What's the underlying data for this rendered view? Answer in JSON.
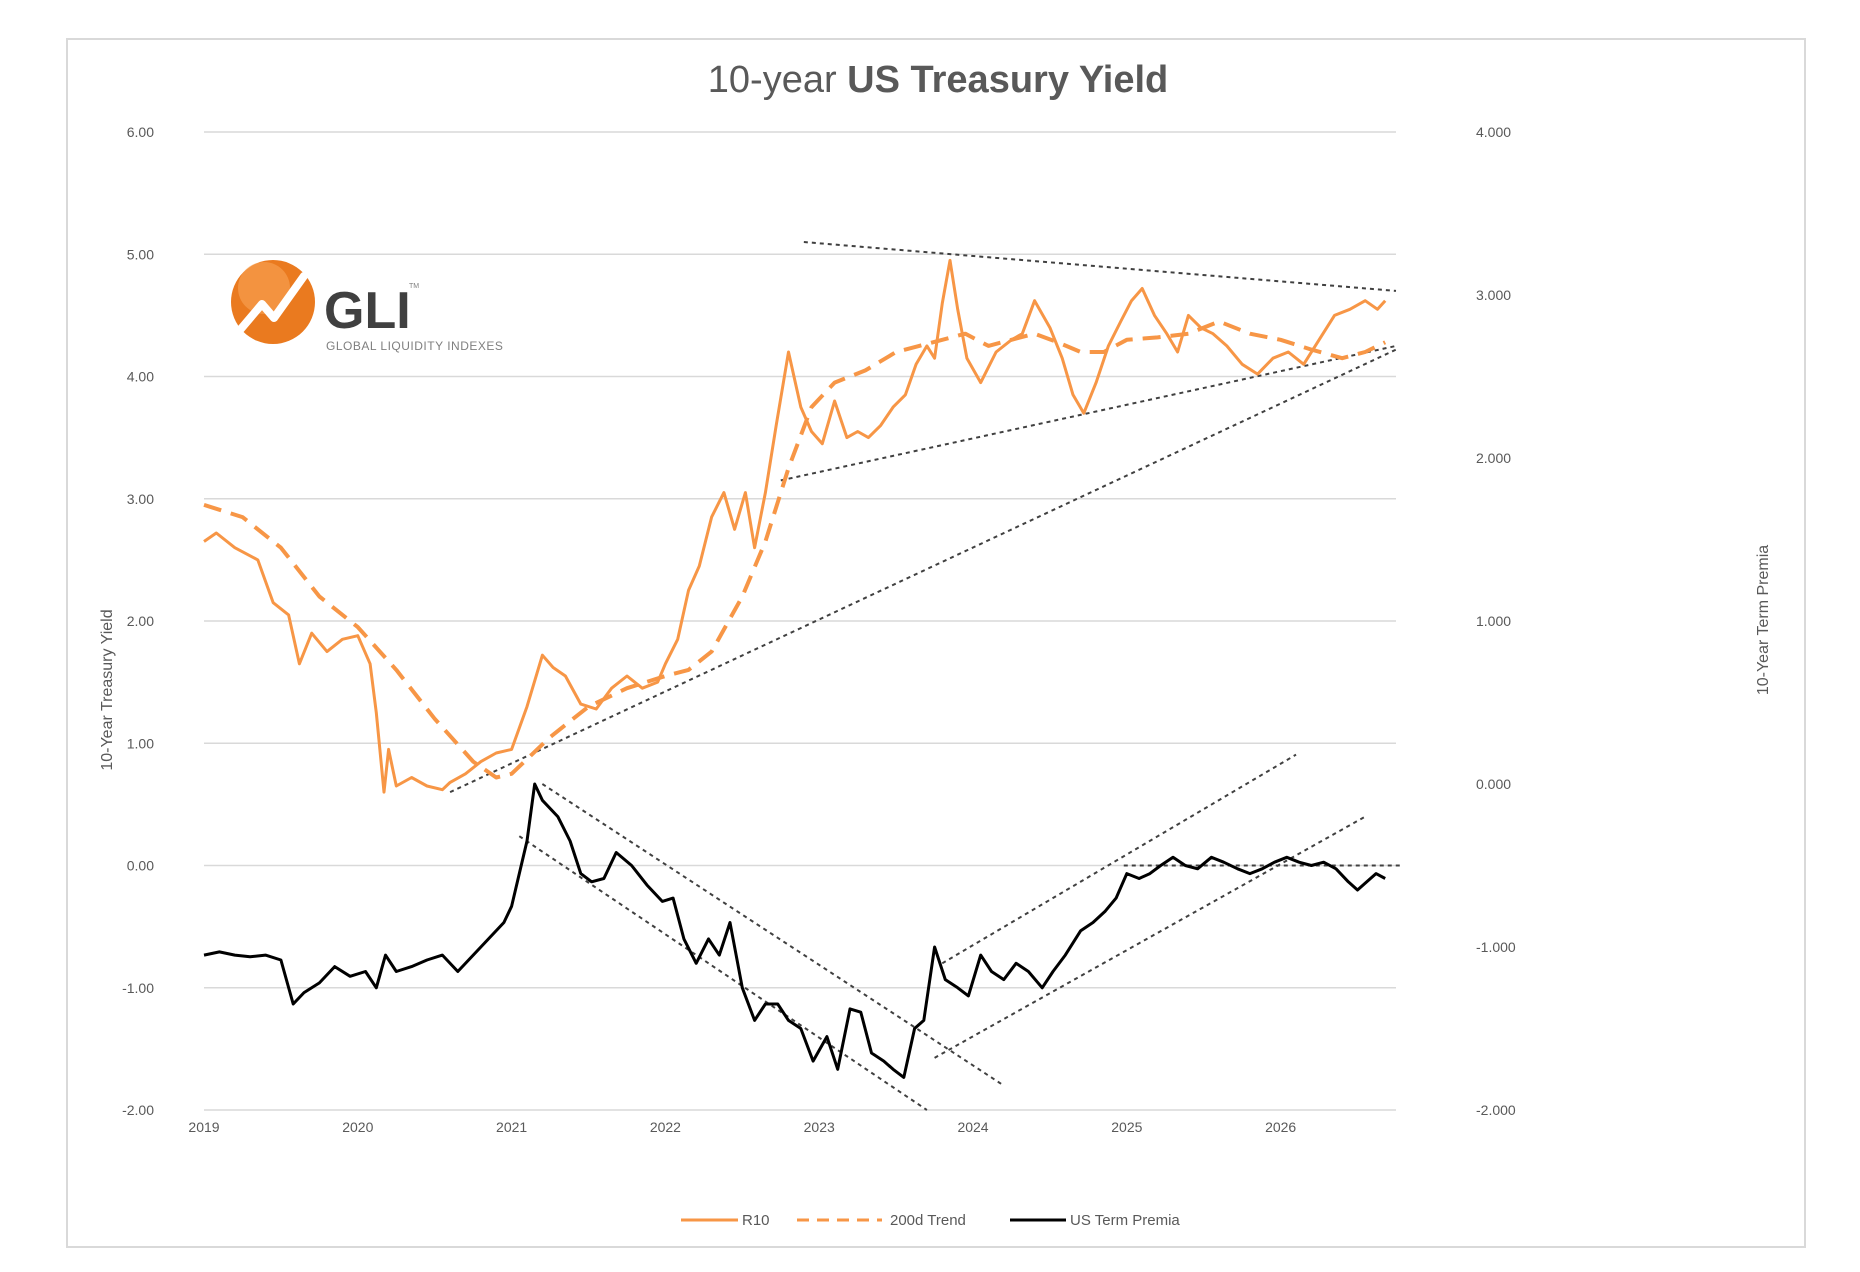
{
  "chart_data": {
    "type": "line",
    "title_part1": "10-year ",
    "title_part2": "US Treasury Yield",
    "ylabel_left": "10-Year Treasury Yield",
    "ylabel_right": "10-Year Term Premia",
    "xlim": [
      2019,
      2026.75
    ],
    "ylim_left": [
      -2,
      6
    ],
    "ylim_right": [
      -2,
      4
    ],
    "left_ticks": [
      "6.00",
      "5.00",
      "4.00",
      "3.00",
      "2.00",
      "1.00",
      "0.00",
      "-1.00",
      "-2.00"
    ],
    "right_ticks": [
      "4.000",
      "3.000",
      "2.000",
      "1.000",
      "0.000",
      "-1.000",
      "-2.000"
    ],
    "x_ticks": [
      "2019",
      "2020",
      "2021",
      "2022",
      "2023",
      "2024",
      "2025",
      "2026"
    ],
    "grid": "horizontal",
    "legend_position": "bottom",
    "colors": {
      "r10": "#f79646",
      "trend": "#f79646",
      "premia": "#000000",
      "trendline": "#404040",
      "grid": "#d9d9d9"
    },
    "logo": {
      "name": "GLI",
      "tagline": "GLOBAL LIQUIDITY INDEXES",
      "mark": "TM"
    },
    "series": [
      {
        "name": "R10",
        "axis": "left",
        "style": "solid",
        "x": [
          2019.0,
          2019.08,
          2019.2,
          2019.35,
          2019.45,
          2019.55,
          2019.62,
          2019.7,
          2019.8,
          2019.9,
          2020.0,
          2020.08,
          2020.12,
          2020.17,
          2020.2,
          2020.25,
          2020.35,
          2020.45,
          2020.55,
          2020.6,
          2020.7,
          2020.8,
          2020.9,
          2021.0,
          2021.1,
          2021.2,
          2021.27,
          2021.35,
          2021.45,
          2021.55,
          2021.65,
          2021.75,
          2021.85,
          2021.95,
          2022.0,
          2022.08,
          2022.15,
          2022.22,
          2022.3,
          2022.38,
          2022.45,
          2022.52,
          2022.58,
          2022.65,
          2022.72,
          2022.8,
          2022.88,
          2022.95,
          2023.02,
          2023.1,
          2023.18,
          2023.25,
          2023.32,
          2023.4,
          2023.48,
          2023.56,
          2023.63,
          2023.7,
          2023.75,
          2023.8,
          2023.85,
          2023.9,
          2023.96,
          2024.05,
          2024.15,
          2024.25,
          2024.32,
          2024.4,
          2024.5,
          2024.58,
          2024.65,
          2024.72,
          2024.8,
          2024.88,
          2024.96,
          2025.03,
          2025.1,
          2025.18,
          2025.26,
          2025.33,
          2025.4,
          2025.48,
          2025.56,
          2025.65,
          2025.75,
          2025.85,
          2025.95,
          2026.05,
          2026.15,
          2026.25,
          2026.35,
          2026.45,
          2026.55,
          2026.63,
          2026.68
        ],
        "values": [
          2.65,
          2.72,
          2.6,
          2.5,
          2.15,
          2.05,
          1.65,
          1.9,
          1.75,
          1.85,
          1.88,
          1.65,
          1.25,
          0.6,
          0.95,
          0.65,
          0.72,
          0.65,
          0.62,
          0.68,
          0.75,
          0.85,
          0.92,
          0.95,
          1.3,
          1.72,
          1.62,
          1.55,
          1.32,
          1.28,
          1.45,
          1.55,
          1.45,
          1.5,
          1.65,
          1.85,
          2.25,
          2.45,
          2.85,
          3.05,
          2.75,
          3.05,
          2.6,
          3.05,
          3.6,
          4.2,
          3.75,
          3.55,
          3.45,
          3.8,
          3.5,
          3.55,
          3.5,
          3.6,
          3.75,
          3.85,
          4.1,
          4.25,
          4.15,
          4.6,
          4.95,
          4.55,
          4.15,
          3.95,
          4.2,
          4.3,
          4.35,
          4.62,
          4.4,
          4.15,
          3.85,
          3.7,
          3.95,
          4.25,
          4.45,
          4.62,
          4.72,
          4.5,
          4.35,
          4.2,
          4.5,
          4.4,
          4.35,
          4.25,
          4.1,
          4.02,
          4.15,
          4.2,
          4.1,
          4.3,
          4.5,
          4.55,
          4.62,
          4.55,
          4.62
        ]
      },
      {
        "name": "200d Trend",
        "axis": "left",
        "style": "dashed",
        "x": [
          2019.0,
          2019.25,
          2019.5,
          2019.75,
          2020.0,
          2020.25,
          2020.5,
          2020.75,
          2020.9,
          2021.0,
          2021.25,
          2021.5,
          2021.75,
          2022.0,
          2022.15,
          2022.3,
          2022.5,
          2022.65,
          2022.8,
          2022.95,
          2023.1,
          2023.3,
          2023.5,
          2023.65,
          2023.8,
          2023.95,
          2024.1,
          2024.25,
          2024.4,
          2024.55,
          2024.7,
          2024.85,
          2025.0,
          2025.2,
          2025.4,
          2025.6,
          2025.8,
          2026.0,
          2026.2,
          2026.4,
          2026.55,
          2026.68
        ],
        "values": [
          2.95,
          2.85,
          2.6,
          2.2,
          1.95,
          1.6,
          1.2,
          0.85,
          0.72,
          0.75,
          1.05,
          1.3,
          1.45,
          1.55,
          1.6,
          1.75,
          2.2,
          2.65,
          3.25,
          3.75,
          3.95,
          4.05,
          4.2,
          4.25,
          4.3,
          4.35,
          4.25,
          4.3,
          4.35,
          4.28,
          4.2,
          4.2,
          4.3,
          4.32,
          4.35,
          4.45,
          4.35,
          4.3,
          4.22,
          4.15,
          4.2,
          4.28
        ]
      },
      {
        "name": "US Term Premia",
        "axis": "right",
        "style": "solid",
        "x": [
          2019.0,
          2019.1,
          2019.2,
          2019.3,
          2019.4,
          2019.5,
          2019.58,
          2019.65,
          2019.75,
          2019.85,
          2019.95,
          2020.05,
          2020.12,
          2020.18,
          2020.25,
          2020.35,
          2020.45,
          2020.55,
          2020.65,
          2020.75,
          2020.85,
          2020.95,
          2021.0,
          2021.05,
          2021.1,
          2021.15,
          2021.2,
          2021.3,
          2021.38,
          2021.45,
          2021.52,
          2021.6,
          2021.68,
          2021.78,
          2021.88,
          2021.98,
          2022.05,
          2022.12,
          2022.2,
          2022.28,
          2022.35,
          2022.42,
          2022.5,
          2022.58,
          2022.65,
          2022.73,
          2022.8,
          2022.88,
          2022.96,
          2023.05,
          2023.12,
          2023.2,
          2023.27,
          2023.34,
          2023.42,
          2023.48,
          2023.55,
          2023.62,
          2023.68,
          2023.75,
          2023.82,
          2023.9,
          2023.97,
          2024.05,
          2024.12,
          2024.2,
          2024.28,
          2024.36,
          2024.45,
          2024.52,
          2024.6,
          2024.7,
          2024.78,
          2024.86,
          2024.93,
          2025.0,
          2025.08,
          2025.15,
          2025.22,
          2025.3,
          2025.38,
          2025.46,
          2025.55,
          2025.63,
          2025.72,
          2025.8,
          2025.88,
          2025.96,
          2026.04,
          2026.12,
          2026.2,
          2026.28,
          2026.36,
          2026.44,
          2026.5,
          2026.56,
          2026.62,
          2026.68
        ],
        "values": [
          -1.05,
          -1.03,
          -1.05,
          -1.06,
          -1.05,
          -1.08,
          -1.35,
          -1.28,
          -1.22,
          -1.12,
          -1.18,
          -1.15,
          -1.25,
          -1.05,
          -1.15,
          -1.12,
          -1.08,
          -1.05,
          -1.15,
          -1.05,
          -0.95,
          -0.85,
          -0.75,
          -0.55,
          -0.35,
          0.0,
          -0.1,
          -0.2,
          -0.35,
          -0.55,
          -0.6,
          -0.58,
          -0.42,
          -0.5,
          -0.62,
          -0.72,
          -0.7,
          -0.95,
          -1.1,
          -0.95,
          -1.05,
          -0.85,
          -1.25,
          -1.45,
          -1.35,
          -1.35,
          -1.45,
          -1.5,
          -1.7,
          -1.55,
          -1.75,
          -1.38,
          -1.4,
          -1.65,
          -1.7,
          -1.75,
          -1.8,
          -1.5,
          -1.45,
          -1.0,
          -1.2,
          -1.25,
          -1.3,
          -1.05,
          -1.15,
          -1.2,
          -1.1,
          -1.15,
          -1.25,
          -1.15,
          -1.05,
          -0.9,
          -0.85,
          -0.78,
          -0.7,
          -0.55,
          -0.58,
          -0.55,
          -0.5,
          -0.45,
          -0.5,
          -0.52,
          -0.45,
          -0.48,
          -0.52,
          -0.55,
          -0.52,
          -0.48,
          -0.45,
          -0.48,
          -0.5,
          -0.48,
          -0.52,
          -0.6,
          -0.65,
          -0.6,
          -0.55,
          -0.58
        ]
      }
    ],
    "trendlines": [
      {
        "axis": "left",
        "points": [
          [
            2022.9,
            5.1
          ],
          [
            2026.75,
            4.7
          ]
        ]
      },
      {
        "axis": "left",
        "points": [
          [
            2022.75,
            3.15
          ],
          [
            2026.75,
            4.25
          ]
        ]
      },
      {
        "axis": "left",
        "points": [
          [
            2020.6,
            0.6
          ],
          [
            2026.75,
            4.22
          ]
        ]
      },
      {
        "axis": "right",
        "points": [
          [
            2021.2,
            0.0
          ],
          [
            2024.2,
            -1.85
          ]
        ]
      },
      {
        "axis": "right",
        "points": [
          [
            2021.05,
            -0.32
          ],
          [
            2023.7,
            -2.0
          ]
        ]
      },
      {
        "axis": "right",
        "points": [
          [
            2023.8,
            -1.1
          ],
          [
            2026.1,
            0.18
          ]
        ]
      },
      {
        "axis": "right",
        "points": [
          [
            2023.75,
            -1.68
          ],
          [
            2026.55,
            -0.2
          ]
        ]
      },
      {
        "axis": "right",
        "points": [
          [
            2024.98,
            -0.5
          ],
          [
            2026.78,
            -0.5
          ]
        ]
      }
    ]
  }
}
